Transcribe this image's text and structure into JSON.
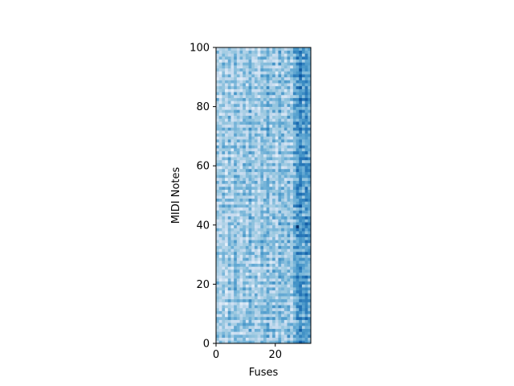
{
  "chart_data": {
    "type": "heatmap",
    "title": "",
    "xlabel": "Fuses",
    "ylabel": "MIDI Notes",
    "xlim": [
      0,
      32
    ],
    "ylim": [
      0,
      100
    ],
    "x_ticks": [
      {
        "value": 0,
        "label": "0"
      },
      {
        "value": 20,
        "label": "20"
      }
    ],
    "y_ticks": [
      {
        "value": 0,
        "label": "0"
      },
      {
        "value": 20,
        "label": "20"
      },
      {
        "value": 40,
        "label": "40"
      },
      {
        "value": 60,
        "label": "60"
      },
      {
        "value": 80,
        "label": "80"
      },
      {
        "value": 100,
        "label": "100"
      }
    ],
    "grid": false,
    "colormap": [
      "#f7fbff",
      "#deebf7",
      "#c6dbef",
      "#9ecae1",
      "#6baed6",
      "#4292c6",
      "#2171b5",
      "#08519c",
      "#08306b"
    ],
    "n_rows": 100,
    "n_cols": 32,
    "column_means": [
      0.34,
      0.3,
      0.38,
      0.28,
      0.4,
      0.3,
      0.42,
      0.36,
      0.3,
      0.4,
      0.34,
      0.44,
      0.32,
      0.38,
      0.3,
      0.42,
      0.36,
      0.46,
      0.34,
      0.4,
      0.3,
      0.44,
      0.38,
      0.36,
      0.42,
      0.34,
      0.5,
      0.58,
      0.64,
      0.52,
      0.6,
      0.5
    ],
    "peak_cell": {
      "col": 27,
      "row": 39,
      "value": 1.0
    }
  }
}
